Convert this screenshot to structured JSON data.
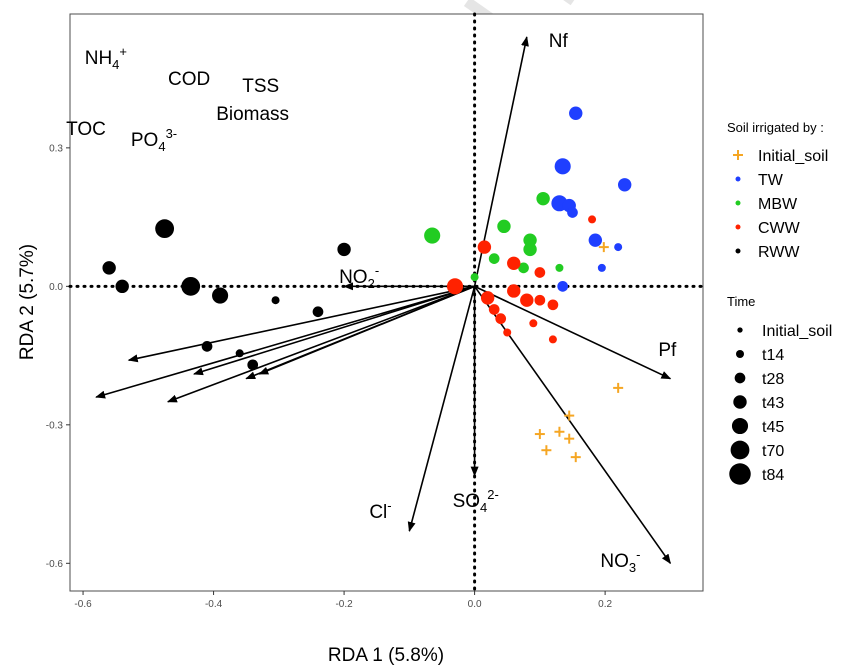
{
  "watermark": "Journal Pre-proof",
  "chart_data": {
    "type": "scatter",
    "xlabel": "RDA 1 (5.8%)",
    "ylabel": "RDA 2 (5.7%)",
    "xlim": [
      -0.62,
      0.35
    ],
    "ylim": [
      -0.66,
      0.59
    ],
    "x_ticks": [
      -0.6,
      -0.4,
      -0.2,
      0.0,
      0.2
    ],
    "y_ticks": [
      -0.6,
      -0.3,
      0.0,
      0.3
    ],
    "grid": false,
    "reference_lines": {
      "x": 0,
      "y": 0,
      "style": "dotted"
    },
    "legends": [
      {
        "title": "Soil irrigated by :",
        "placement": "right",
        "entries": [
          {
            "label": "Initial_soil",
            "color": "#f5a623",
            "shape": "plus"
          },
          {
            "label": "TW",
            "color": "#1f3fff",
            "shape": "circle"
          },
          {
            "label": "MBW",
            "color": "#22cc22",
            "shape": "circle"
          },
          {
            "label": "CWW",
            "color": "#ff2200",
            "shape": "circle"
          },
          {
            "label": "RWW",
            "color": "#000000",
            "shape": "circle"
          }
        ]
      },
      {
        "title": "Time",
        "placement": "right",
        "entries": [
          {
            "label": "Initial_soil",
            "size": 1
          },
          {
            "label": "t14",
            "size": 2
          },
          {
            "label": "t28",
            "size": 3
          },
          {
            "label": "t43",
            "size": 4
          },
          {
            "label": "t45",
            "size": 5
          },
          {
            "label": "t70",
            "size": 6
          },
          {
            "label": "t84",
            "size": 7
          }
        ]
      }
    ],
    "vectors": [
      {
        "label": "Nf",
        "x": 0.08,
        "y": 0.54
      },
      {
        "label": "NO2-",
        "x": -0.2,
        "y": 0.0
      },
      {
        "label": "NH4+",
        "x": -0.53,
        "y": -0.16
      },
      {
        "label": "COD",
        "x": -0.43,
        "y": -0.19
      },
      {
        "label": "TOC",
        "x": -0.58,
        "y": -0.24
      },
      {
        "label": "PO43-",
        "x": -0.47,
        "y": -0.25
      },
      {
        "label": "Biomass",
        "x": -0.35,
        "y": -0.2
      },
      {
        "label": "TSS",
        "x": -0.33,
        "y": -0.19
      },
      {
        "label": "Cl-",
        "x": -0.1,
        "y": -0.53
      },
      {
        "label": "SO42-",
        "x": 0.0,
        "y": -0.41
      },
      {
        "label": "NO3-",
        "x": 0.3,
        "y": -0.6
      },
      {
        "label": "Pf",
        "x": 0.3,
        "y": -0.2
      }
    ],
    "vector_labels": {
      "Nf": {
        "base": "Nf",
        "sup": ""
      },
      "NO2-": {
        "base": "NO",
        "sub": "2",
        "sup": "-"
      },
      "NH4+": {
        "base": "NH",
        "sub": "4",
        "sup": "+"
      },
      "COD": {
        "base": "COD"
      },
      "TOC": {
        "base": "TOC"
      },
      "PO43-": {
        "base": "PO",
        "sub": "4",
        "sup": "3-"
      },
      "Biomass": {
        "base": "Biomass"
      },
      "TSS": {
        "base": "TSS"
      },
      "Cl-": {
        "base": "Cl",
        "sup": "-"
      },
      "SO42-": {
        "base": "SO",
        "sub": "4",
        "sup": "2-"
      },
      "NO3-": {
        "base": "NO",
        "sub": "3",
        "sup": "-"
      },
      "Pf": {
        "base": "Pf"
      }
    },
    "points": [
      {
        "group": "RWW",
        "time": "t70",
        "x": -0.475,
        "y": 0.125
      },
      {
        "group": "RWW",
        "time": "t70",
        "x": -0.435,
        "y": 0.0
      },
      {
        "group": "RWW",
        "time": "t45",
        "x": -0.39,
        "y": -0.02
      },
      {
        "group": "RWW",
        "time": "t43",
        "x": -0.56,
        "y": 0.04
      },
      {
        "group": "RWW",
        "time": "t43",
        "x": -0.54,
        "y": 0.0
      },
      {
        "group": "RWW",
        "time": "t43",
        "x": -0.2,
        "y": 0.08
      },
      {
        "group": "RWW",
        "time": "t28",
        "x": -0.24,
        "y": -0.055
      },
      {
        "group": "RWW",
        "time": "t28",
        "x": -0.41,
        "y": -0.13
      },
      {
        "group": "RWW",
        "time": "t28",
        "x": -0.34,
        "y": -0.17
      },
      {
        "group": "RWW",
        "time": "t14",
        "x": -0.305,
        "y": -0.03
      },
      {
        "group": "RWW",
        "time": "t14",
        "x": -0.36,
        "y": -0.145
      },
      {
        "group": "MBW",
        "time": "t45",
        "x": -0.065,
        "y": 0.11
      },
      {
        "group": "MBW",
        "time": "t43",
        "x": 0.105,
        "y": 0.19
      },
      {
        "group": "MBW",
        "time": "t43",
        "x": 0.045,
        "y": 0.13
      },
      {
        "group": "MBW",
        "time": "t43",
        "x": 0.085,
        "y": 0.1
      },
      {
        "group": "MBW",
        "time": "t43",
        "x": 0.085,
        "y": 0.08
      },
      {
        "group": "MBW",
        "time": "t28",
        "x": 0.03,
        "y": 0.06
      },
      {
        "group": "MBW",
        "time": "t28",
        "x": 0.075,
        "y": 0.04
      },
      {
        "group": "MBW",
        "time": "t14",
        "x": 0.13,
        "y": 0.04
      },
      {
        "group": "MBW",
        "time": "t14",
        "x": 0.0,
        "y": 0.02
      },
      {
        "group": "CWW",
        "time": "t45",
        "x": -0.03,
        "y": 0.0
      },
      {
        "group": "CWW",
        "time": "t43",
        "x": 0.015,
        "y": 0.085
      },
      {
        "group": "CWW",
        "time": "t43",
        "x": 0.06,
        "y": 0.05
      },
      {
        "group": "CWW",
        "time": "t43",
        "x": 0.02,
        "y": -0.025
      },
      {
        "group": "CWW",
        "time": "t43",
        "x": 0.06,
        "y": -0.01
      },
      {
        "group": "CWW",
        "time": "t43",
        "x": 0.08,
        "y": -0.03
      },
      {
        "group": "CWW",
        "time": "t28",
        "x": 0.1,
        "y": -0.03
      },
      {
        "group": "CWW",
        "time": "t28",
        "x": 0.03,
        "y": -0.05
      },
      {
        "group": "CWW",
        "time": "t28",
        "x": 0.1,
        "y": 0.03
      },
      {
        "group": "CWW",
        "time": "t28",
        "x": 0.04,
        "y": -0.07
      },
      {
        "group": "CWW",
        "time": "t28",
        "x": 0.12,
        "y": -0.04
      },
      {
        "group": "CWW",
        "time": "t14",
        "x": 0.05,
        "y": -0.1
      },
      {
        "group": "CWW",
        "time": "t14",
        "x": 0.09,
        "y": -0.08
      },
      {
        "group": "CWW",
        "time": "t14",
        "x": 0.12,
        "y": -0.115
      },
      {
        "group": "CWW",
        "time": "t14",
        "x": 0.18,
        "y": 0.145
      },
      {
        "group": "TW",
        "time": "t45",
        "x": 0.135,
        "y": 0.26
      },
      {
        "group": "TW",
        "time": "t45",
        "x": 0.13,
        "y": 0.18
      },
      {
        "group": "TW",
        "time": "t43",
        "x": 0.155,
        "y": 0.375
      },
      {
        "group": "TW",
        "time": "t43",
        "x": 0.23,
        "y": 0.22
      },
      {
        "group": "TW",
        "time": "t43",
        "x": 0.145,
        "y": 0.175
      },
      {
        "group": "TW",
        "time": "t43",
        "x": 0.185,
        "y": 0.1
      },
      {
        "group": "TW",
        "time": "t28",
        "x": 0.15,
        "y": 0.16
      },
      {
        "group": "TW",
        "time": "t28",
        "x": 0.135,
        "y": 0.0
      },
      {
        "group": "TW",
        "time": "t14",
        "x": 0.22,
        "y": 0.085
      },
      {
        "group": "TW",
        "time": "t14",
        "x": 0.195,
        "y": 0.04
      },
      {
        "group": "Initial_soil",
        "time": "Initial_soil",
        "x": 0.22,
        "y": -0.22
      },
      {
        "group": "Initial_soil",
        "time": "Initial_soil",
        "x": 0.145,
        "y": -0.28
      },
      {
        "group": "Initial_soil",
        "time": "Initial_soil",
        "x": 0.1,
        "y": -0.32
      },
      {
        "group": "Initial_soil",
        "time": "Initial_soil",
        "x": 0.13,
        "y": -0.315
      },
      {
        "group": "Initial_soil",
        "time": "Initial_soil",
        "x": 0.145,
        "y": -0.33
      },
      {
        "group": "Initial_soil",
        "time": "Initial_soil",
        "x": 0.11,
        "y": -0.355
      },
      {
        "group": "Initial_soil",
        "time": "Initial_soil",
        "x": 0.155,
        "y": -0.37
      },
      {
        "group": "Initial_soil",
        "time": "Initial_soil",
        "x": 0.198,
        "y": 0.085
      }
    ]
  }
}
